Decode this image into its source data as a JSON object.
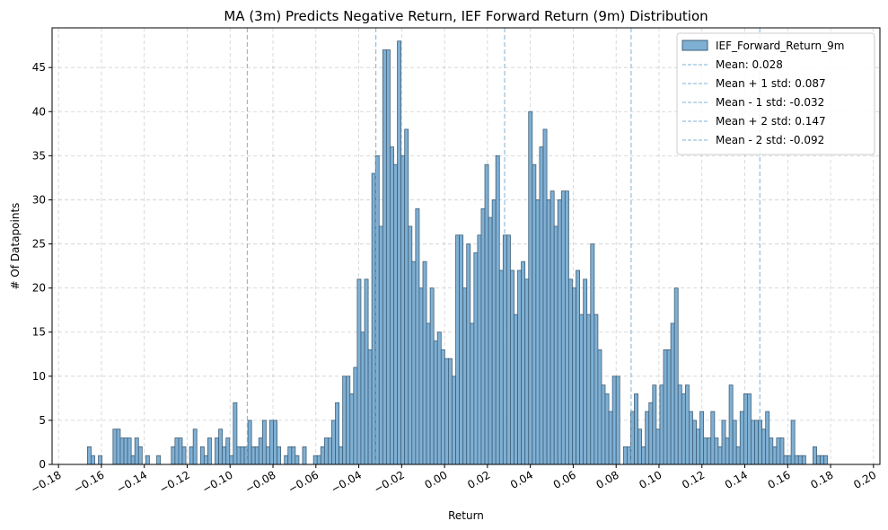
{
  "chart_data": {
    "type": "bar",
    "title": "MA (3m) Predicts Negative Return, IEF Forward Return (9m) Distribution",
    "xlabel": "Return",
    "ylabel": "# Of Datapoints",
    "xlim": [
      -0.183,
      0.203
    ],
    "ylim": [
      0,
      49.5
    ],
    "grid": true,
    "legend_position": "top-right",
    "bar_color": "#7fb0d4",
    "bar_edge_color": "#3f5f78",
    "line_color": "#7fb0d4",
    "xticks": [
      -0.18,
      -0.16,
      -0.14,
      -0.12,
      -0.1,
      -0.08,
      -0.06,
      -0.04,
      -0.02,
      0.0,
      0.02,
      0.04,
      0.06,
      0.08,
      0.1,
      0.12,
      0.14,
      0.16,
      0.18,
      0.2
    ],
    "xtick_labels": [
      "−0.18",
      "−0.16",
      "−0.14",
      "−0.12",
      "−0.10",
      "−0.08",
      "−0.06",
      "−0.04",
      "−0.02",
      "0.00",
      "0.02",
      "0.04",
      "0.06",
      "0.08",
      "0.10",
      "0.12",
      "0.14",
      "0.16",
      "0.18",
      "0.20"
    ],
    "yticks": [
      0,
      5,
      10,
      15,
      20,
      25,
      30,
      35,
      40,
      45
    ],
    "ytick_labels": [
      "0",
      "5",
      "10",
      "15",
      "20",
      "25",
      "30",
      "35",
      "40",
      "45"
    ],
    "bin_start": -0.1665,
    "bin_width": 0.0017,
    "series": [
      {
        "name": "IEF_Forward_Return_9m",
        "counts": [
          2,
          1,
          0,
          1,
          0,
          0,
          0,
          4,
          4,
          3,
          3,
          3,
          1,
          3,
          2,
          0,
          1,
          0,
          0,
          1,
          0,
          0,
          0,
          2,
          3,
          3,
          2,
          0,
          2,
          4,
          0,
          2,
          1,
          3,
          0,
          3,
          4,
          2,
          3,
          1,
          7,
          2,
          2,
          2,
          5,
          2,
          2,
          3,
          5,
          2,
          5,
          5,
          2,
          0,
          1,
          2,
          2,
          1,
          0,
          2,
          0,
          0,
          1,
          1,
          2,
          3,
          3,
          5,
          7,
          2,
          10,
          10,
          8,
          11,
          21,
          15,
          21,
          13,
          33,
          35,
          27,
          47,
          47,
          36,
          34,
          48,
          35,
          38,
          27,
          23,
          29,
          20,
          23,
          16,
          20,
          14,
          15,
          13,
          12,
          12,
          10,
          26,
          26,
          20,
          25,
          16,
          24,
          26,
          29,
          34,
          28,
          30,
          35,
          22,
          26,
          26,
          22,
          17,
          22,
          23,
          21,
          40,
          34,
          30,
          36,
          38,
          30,
          31,
          27,
          30,
          31,
          31,
          21,
          20,
          22,
          17,
          21,
          17,
          25,
          17,
          13,
          9,
          8,
          6,
          10,
          10,
          0,
          2,
          2,
          6,
          8,
          4,
          2,
          6,
          7,
          9,
          4,
          9,
          13,
          13,
          16,
          20,
          9,
          8,
          9,
          6,
          5,
          4,
          6,
          3,
          3,
          6,
          3,
          2,
          5,
          3,
          9,
          5,
          2,
          6,
          8,
          8,
          5,
          5,
          5,
          4,
          6,
          3,
          2,
          3,
          3,
          1,
          1,
          5,
          1,
          1,
          1,
          0,
          0,
          2,
          1,
          1,
          1
        ]
      }
    ],
    "reference_lines": [
      {
        "name": "Mean: 0.028",
        "x": 0.028
      },
      {
        "name": "Mean + 1 std: 0.087",
        "x": 0.087
      },
      {
        "name": "Mean - 1 std: -0.032",
        "x": -0.032
      },
      {
        "name": "Mean + 2 std: 0.147",
        "x": 0.147
      },
      {
        "name": "Mean - 2 std: -0.092",
        "x": -0.092
      }
    ]
  }
}
